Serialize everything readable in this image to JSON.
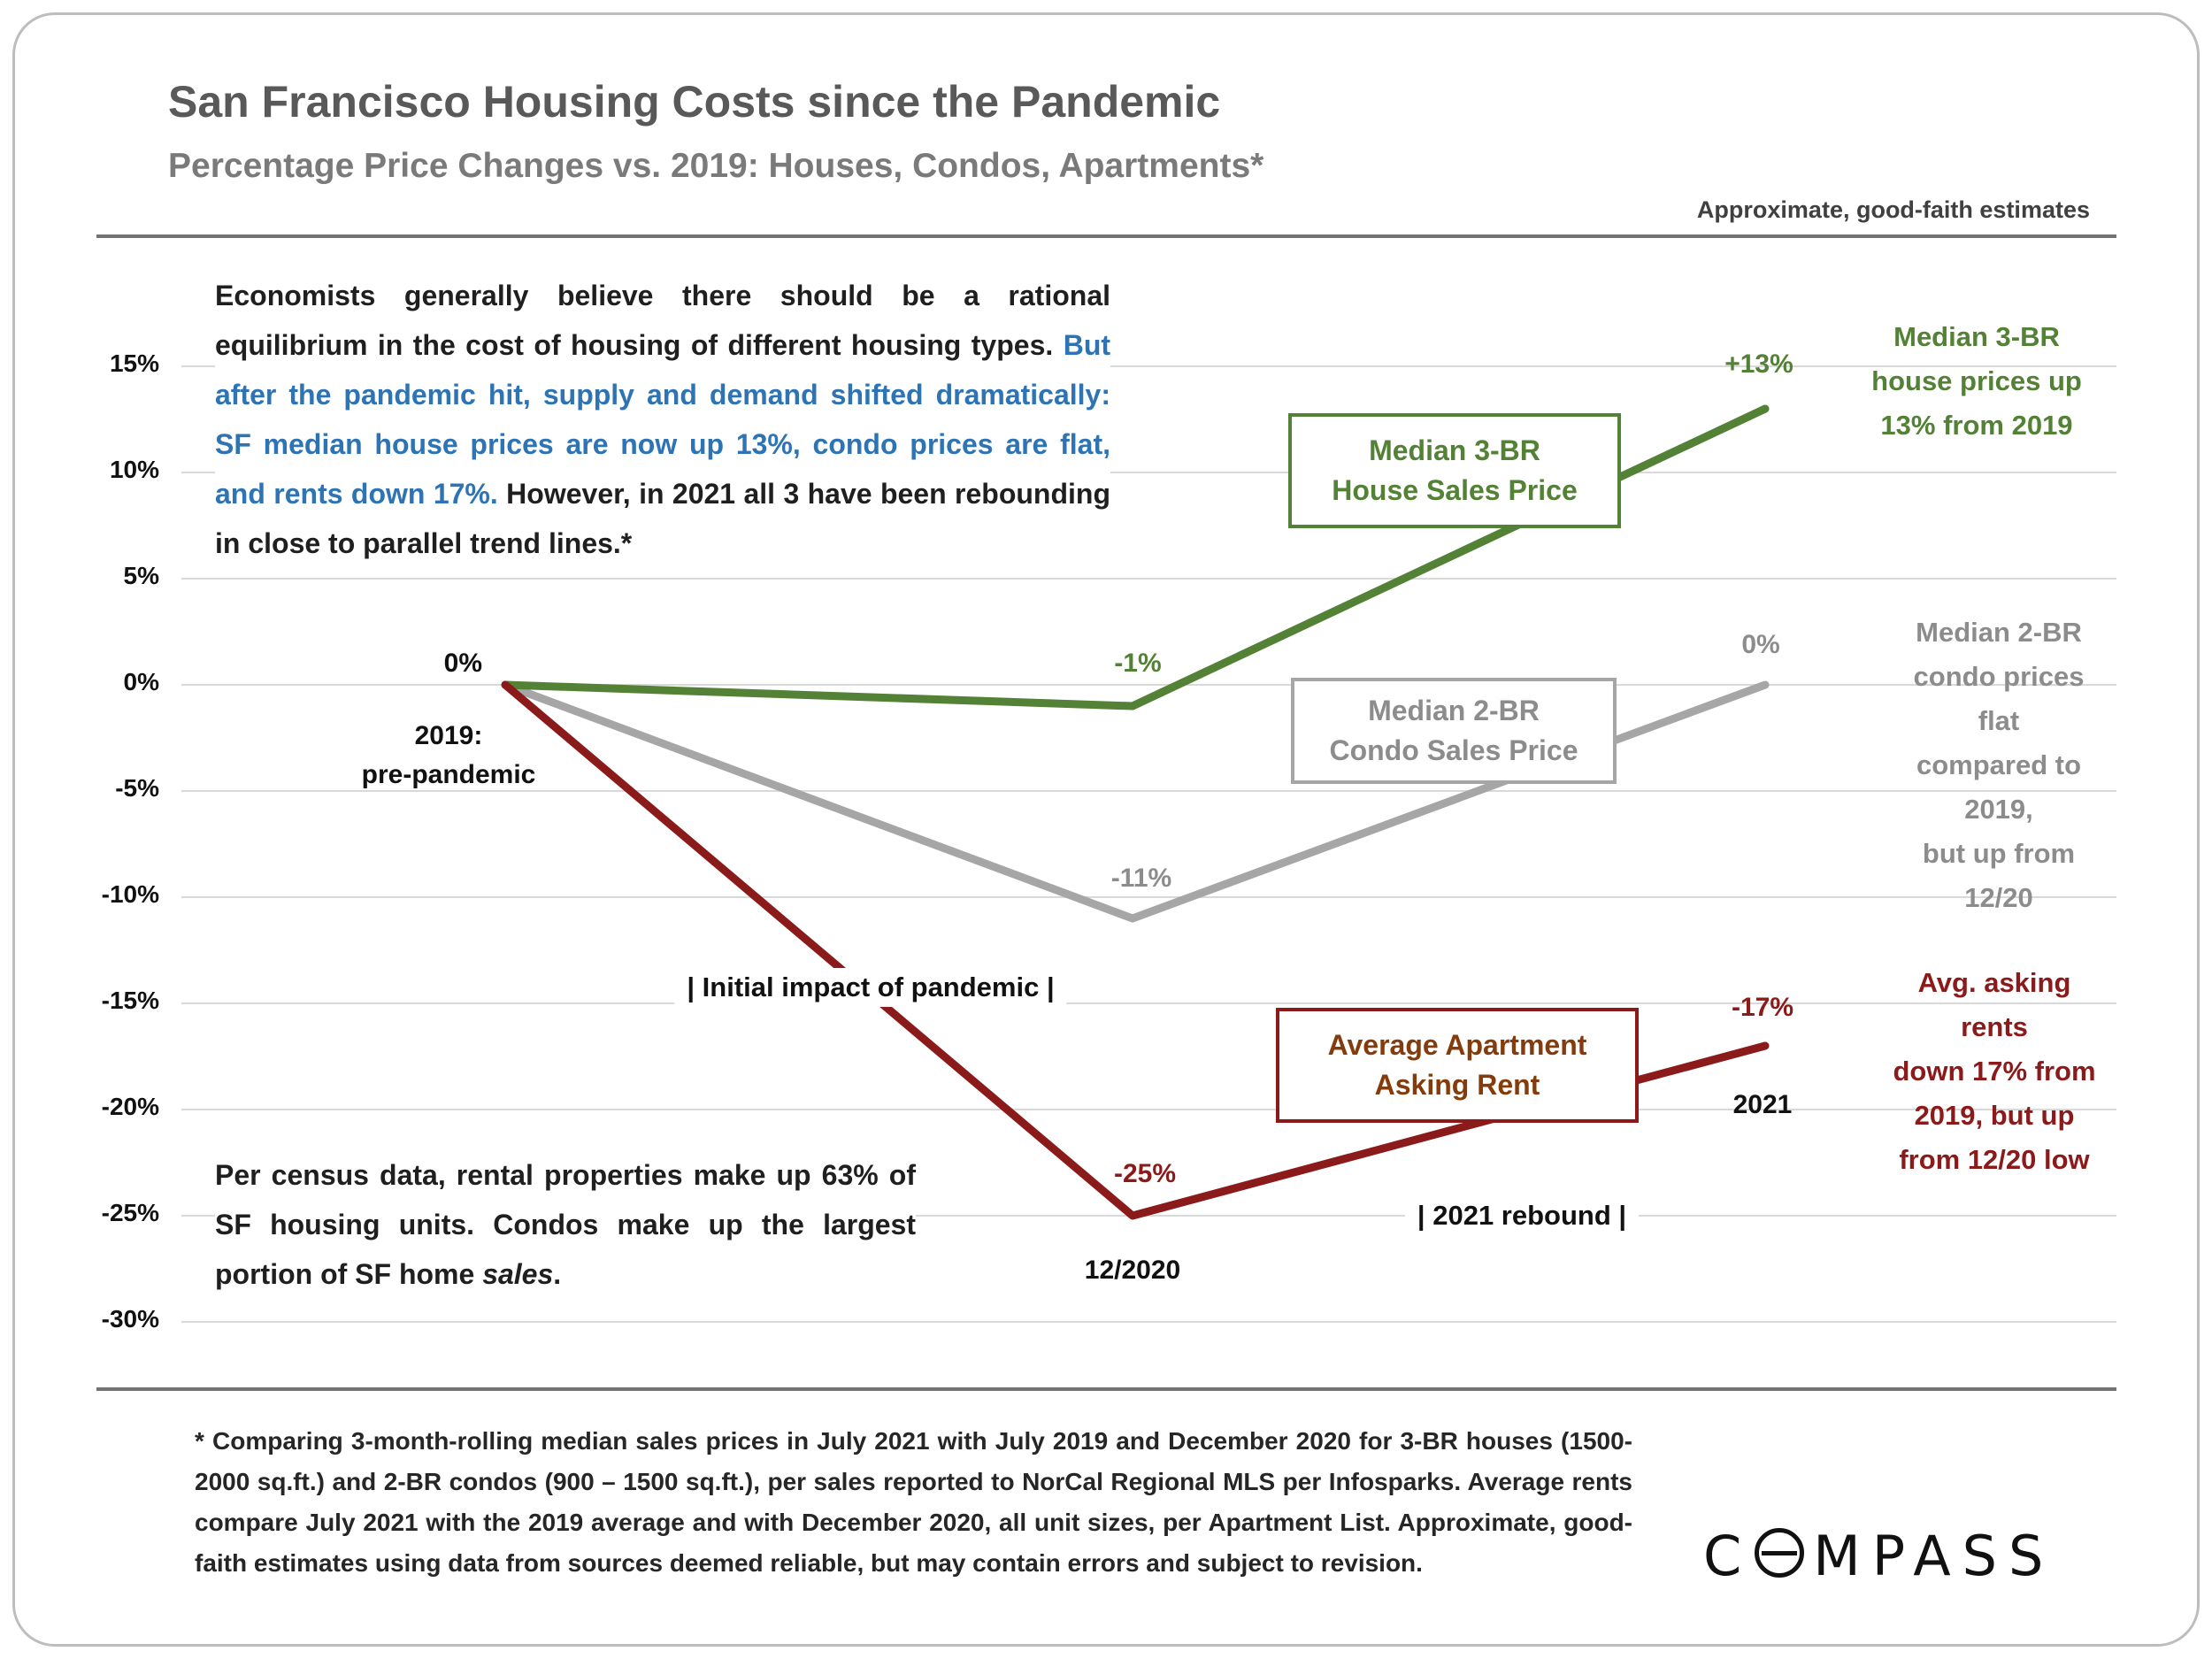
{
  "header": {
    "title": "San Francisco Housing Costs since the Pandemic",
    "subtitle": "Percentage Price Changes vs. 2019: Houses, Condos, Apartments*",
    "disclaimer": "Approximate, good-faith estimates"
  },
  "commentary": {
    "lead_black": "Economists generally believe there should be a rational equilibrium in the cost of housing of different housing types.",
    "highlight_blue": "But after the pandemic hit, supply and demand shifted dramatically: SF median house prices are now up 13%, condo prices are flat, and rents down 17%.",
    "tail_black": "However, in 2021 all 3 have been rebounding in close to parallel trend lines.*",
    "census_lead": "Per census data, rental properties make up 63% of SF housing units. Condos make up the largest portion of SF home ",
    "census_italic": "sales",
    "census_tail": "."
  },
  "chart_data": {
    "type": "line",
    "x": [
      "2019",
      "12/2020",
      "2021"
    ],
    "ylim": [
      -30,
      15
    ],
    "y_ticks": [
      "15%",
      "10%",
      "5%",
      "0%",
      "-5%",
      "-10%",
      "-15%",
      "-20%",
      "-25%",
      "-30%"
    ],
    "grid": true,
    "start_label": "0%",
    "series": [
      {
        "name": "Median 3-BR House Sales Price",
        "color": "#538135",
        "values": [
          0,
          -1,
          13
        ],
        "mid_label": "-1%",
        "end_label": "+13%",
        "box_label": "Median 3-BR\nHouse Sales Price",
        "note": "Median 3-BR\nhouse prices up\n13% from 2019"
      },
      {
        "name": "Median 2-BR Condo Sales Price",
        "color": "#a6a6a6",
        "values": [
          0,
          -11,
          0
        ],
        "mid_label": "-11%",
        "end_label": "0%",
        "box_label": "Median 2-BR\nCondo Sales Price",
        "note": "Median 2-BR\ncondo prices flat\ncompared to 2019,\nbut up from 12/20"
      },
      {
        "name": "Average Apartment Asking Rent",
        "color": "#8b1a1a",
        "values": [
          0,
          -25,
          -17
        ],
        "mid_label": "-25%",
        "end_label": "-17%",
        "box_label": "Average Apartment\nAsking Rent",
        "note": "Avg. asking rents\ndown 17% from\n2019, but up\nfrom 12/20 low"
      }
    ],
    "x_axis_labels": {
      "start": "2019:\npre-pandemic",
      "mid": "12/2020",
      "end": "2021"
    },
    "phases": {
      "initial": "| Initial impact of pandemic |",
      "rebound": "| 2021 rebound |"
    }
  },
  "footer": {
    "footnote": "* Comparing 3-month-rolling median sales prices in July 2021 with July 2019 and December 2020 for 3-BR houses (1500-2000 sq.ft.) and 2-BR condos (900 – 1500 sq.ft.), per sales reported to NorCal Regional MLS per Infosparks. Average rents compare July 2021 with the 2019 average and with December 2020, all unit sizes, per Apartment List. Approximate, good-faith estimates using data from sources deemed reliable, but may contain errors and subject to revision.",
    "logo_c": "C",
    "logo_rest": "MPASS"
  }
}
